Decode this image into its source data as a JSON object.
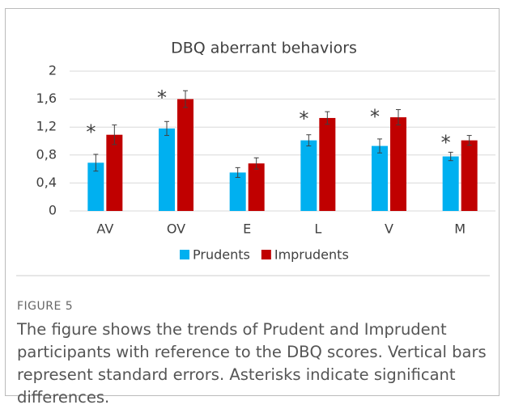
{
  "chart_data": {
    "type": "bar",
    "title": "DBQ aberrant behaviors",
    "categories": [
      "AV",
      "OV",
      "E",
      "L",
      "V",
      "M"
    ],
    "series": [
      {
        "name": "Prudents",
        "color": "#00b0f0",
        "values": [
          0.69,
          1.18,
          0.55,
          1.01,
          0.93,
          0.78
        ],
        "errors": [
          0.12,
          0.1,
          0.07,
          0.08,
          0.1,
          0.06
        ]
      },
      {
        "name": "Imprudents",
        "color": "#c00000",
        "values": [
          1.09,
          1.6,
          0.68,
          1.33,
          1.34,
          1.01
        ],
        "errors": [
          0.14,
          0.12,
          0.08,
          0.09,
          0.11,
          0.07
        ]
      }
    ],
    "significance": [
      "*",
      "*",
      null,
      "*",
      "*",
      "*"
    ],
    "ylim": [
      0,
      2
    ],
    "yticks": [
      0,
      {
        "value": 0.4,
        "label": "0,4"
      },
      {
        "value": 0.8,
        "label": "0,8"
      },
      {
        "value": 1.2,
        "label": "1,2"
      },
      {
        "value": 1.6,
        "label": "1,6"
      },
      2
    ],
    "grid": true,
    "legend": "bottom"
  },
  "caption": {
    "label": "FIGURE 5",
    "text": "The figure shows the trends of Prudent and Imprudent participants with reference to the DBQ scores. Vertical bars represent standard errors. Asterisks indicate significant differences."
  }
}
